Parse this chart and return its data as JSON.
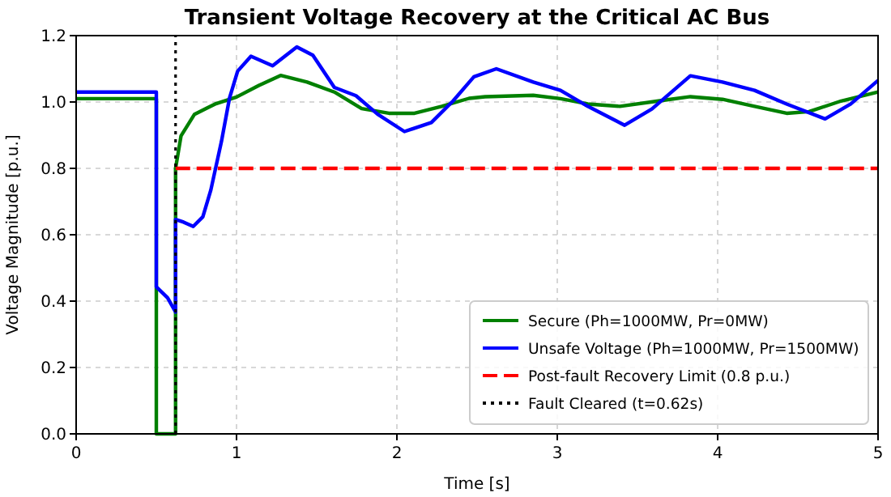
{
  "chart_data": {
    "type": "line",
    "title": "Transient Voltage Recovery at the Critical AC Bus",
    "xlabel": "Time [s]",
    "ylabel": "Voltage Magnitude [p.u.]",
    "xlim": [
      0,
      5
    ],
    "ylim": [
      0,
      1.2
    ],
    "xticks": [
      0,
      1,
      2,
      3,
      4,
      5
    ],
    "yticks": [
      {
        "value": 0,
        "label": "0.0"
      },
      {
        "value": 0.2,
        "label": "0.2"
      },
      {
        "value": 0.4,
        "label": "0.4"
      },
      {
        "value": 0.6,
        "label": "0.6"
      },
      {
        "value": 0.8,
        "label": "0.8"
      },
      {
        "value": 1,
        "label": "1.0"
      },
      {
        "value": 1.2,
        "label": "1.2"
      }
    ],
    "grid": true,
    "legend": "bottom right",
    "line_style": "solid",
    "marker": "none",
    "series": [
      {
        "name": "Secure (Ph=1000MW, Pr=0MW)",
        "color": "#008000",
        "x": [
          0,
          0.5,
          0.5,
          0.62,
          0.62,
          0.654,
          0.738,
          0.872,
          1.0,
          1.14,
          1.275,
          1.44,
          1.61,
          1.78,
          1.95,
          2.11,
          2.28,
          2.45,
          2.55,
          2.85,
          3.02,
          3.19,
          3.39,
          3.63,
          3.83,
          4.03,
          4.23,
          4.43,
          4.57,
          4.77,
          5.0
        ],
        "values": [
          1.01,
          1.01,
          0,
          0,
          0.8,
          0.898,
          0.963,
          0.995,
          1.015,
          1.05,
          1.08,
          1.06,
          1.03,
          0.98,
          0.966,
          0.966,
          0.987,
          1.011,
          1.016,
          1.02,
          1.01,
          0.994,
          0.987,
          1.003,
          1.016,
          1.008,
          0.987,
          0.966,
          0.971,
          1.003,
          1.03
        ]
      },
      {
        "name": "Unsafe Voltage (Ph=1000MW, Pr=1500MW)",
        "color": "#0000ff",
        "x": [
          0,
          0.5,
          0.5,
          0.57,
          0.62,
          0.62,
          0.67,
          0.73,
          0.79,
          0.84,
          0.906,
          0.956,
          1.007,
          1.09,
          1.225,
          1.376,
          1.476,
          1.61,
          1.745,
          1.88,
          2.047,
          2.215,
          2.35,
          2.48,
          2.62,
          2.85,
          3.02,
          3.19,
          3.42,
          3.59,
          3.83,
          4.03,
          4.23,
          4.43,
          4.67,
          4.83,
          5.0
        ],
        "values": [
          1.03,
          1.03,
          0.443,
          0.41,
          0.367,
          0.646,
          0.638,
          0.625,
          0.654,
          0.735,
          0.881,
          1.011,
          1.093,
          1.138,
          1.109,
          1.166,
          1.141,
          1.044,
          1.019,
          0.963,
          0.911,
          0.938,
          1.003,
          1.076,
          1.1,
          1.06,
          1.035,
          0.987,
          0.93,
          0.979,
          1.079,
          1.06,
          1.035,
          0.994,
          0.949,
          0.994,
          1.065
        ]
      },
      {
        "name": "Post-fault Recovery Limit (0.8 p.u.)",
        "color": "#ff0000",
        "line_style": "dashed",
        "x": [
          0.62,
          5
        ],
        "values": [
          0.8,
          0.8
        ]
      },
      {
        "name": "Fault Cleared (t=0.62s)",
        "color": "#000000",
        "line_style": "dotted",
        "x": [
          0.62,
          0.62
        ],
        "values": [
          0,
          1.2
        ]
      }
    ]
  }
}
